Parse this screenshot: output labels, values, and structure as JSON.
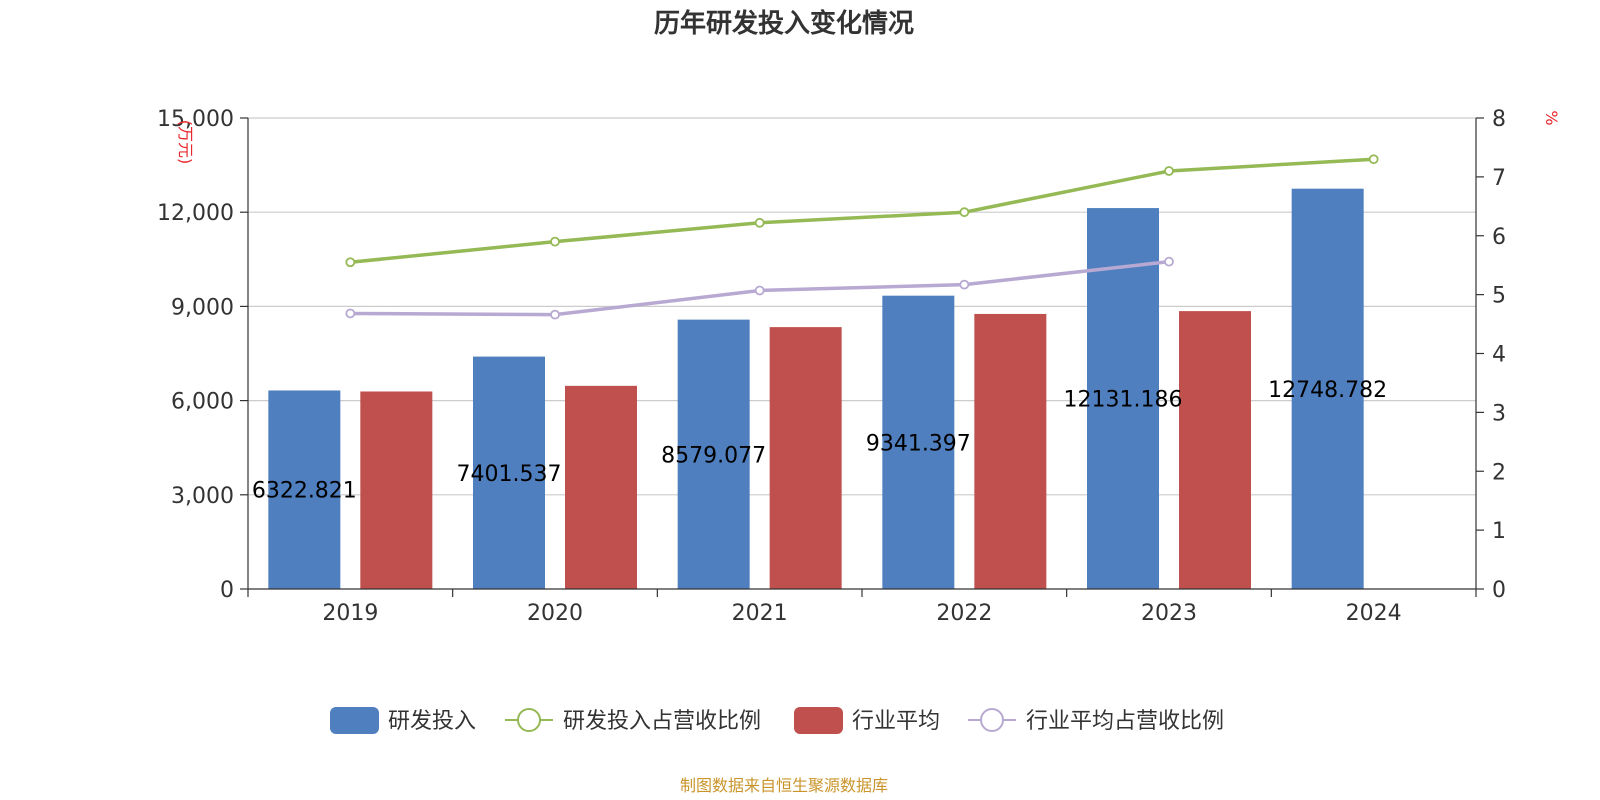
{
  "title": "历年研发投入变化情况",
  "source": "制图数据来自恒生聚源数据库",
  "chart_data": {
    "type": "bar",
    "categories": [
      "2019",
      "2020",
      "2021",
      "2022",
      "2023",
      "2024"
    ],
    "y_left": {
      "unit": "万元",
      "min": 0,
      "max": 15000,
      "ticks": [
        0,
        3000,
        6000,
        9000,
        12000,
        15000
      ],
      "tick_labels": [
        "0",
        "3,000",
        "6,000",
        "9,000",
        "12,000",
        "15,000"
      ]
    },
    "y_right": {
      "unit": "%",
      "min": 0,
      "max": 8,
      "ticks": [
        0,
        1,
        2,
        3,
        4,
        5,
        6,
        7,
        8
      ],
      "tick_labels": [
        "0",
        "1",
        "2",
        "3",
        "4",
        "5",
        "6",
        "7",
        "8"
      ]
    },
    "grid": true,
    "legend_position": "bottom",
    "series": [
      {
        "name": "研发投入",
        "kind": "bar",
        "axis": "left",
        "color": "#4f7fbe",
        "values": [
          6322.821,
          7401.537,
          8579.077,
          9341.397,
          12131.186,
          12748.782
        ],
        "labels": [
          "6322.821",
          "7401.537",
          "8579.077",
          "9341.397",
          "12131.186",
          "12748.782"
        ]
      },
      {
        "name": "研发投入占营收比例",
        "kind": "line",
        "axis": "right",
        "color": "#94b955",
        "values": [
          5.55,
          5.9,
          6.22,
          6.4,
          7.1,
          7.3
        ]
      },
      {
        "name": "行业平均",
        "kind": "bar",
        "axis": "left",
        "color": "#c0504d",
        "values": [
          6290,
          6470,
          8340,
          8760,
          8850,
          null
        ]
      },
      {
        "name": "行业平均占营收比例",
        "kind": "line",
        "axis": "right",
        "color": "#b7a9d1",
        "values": [
          4.68,
          4.66,
          5.07,
          5.17,
          5.56,
          null
        ]
      }
    ]
  }
}
